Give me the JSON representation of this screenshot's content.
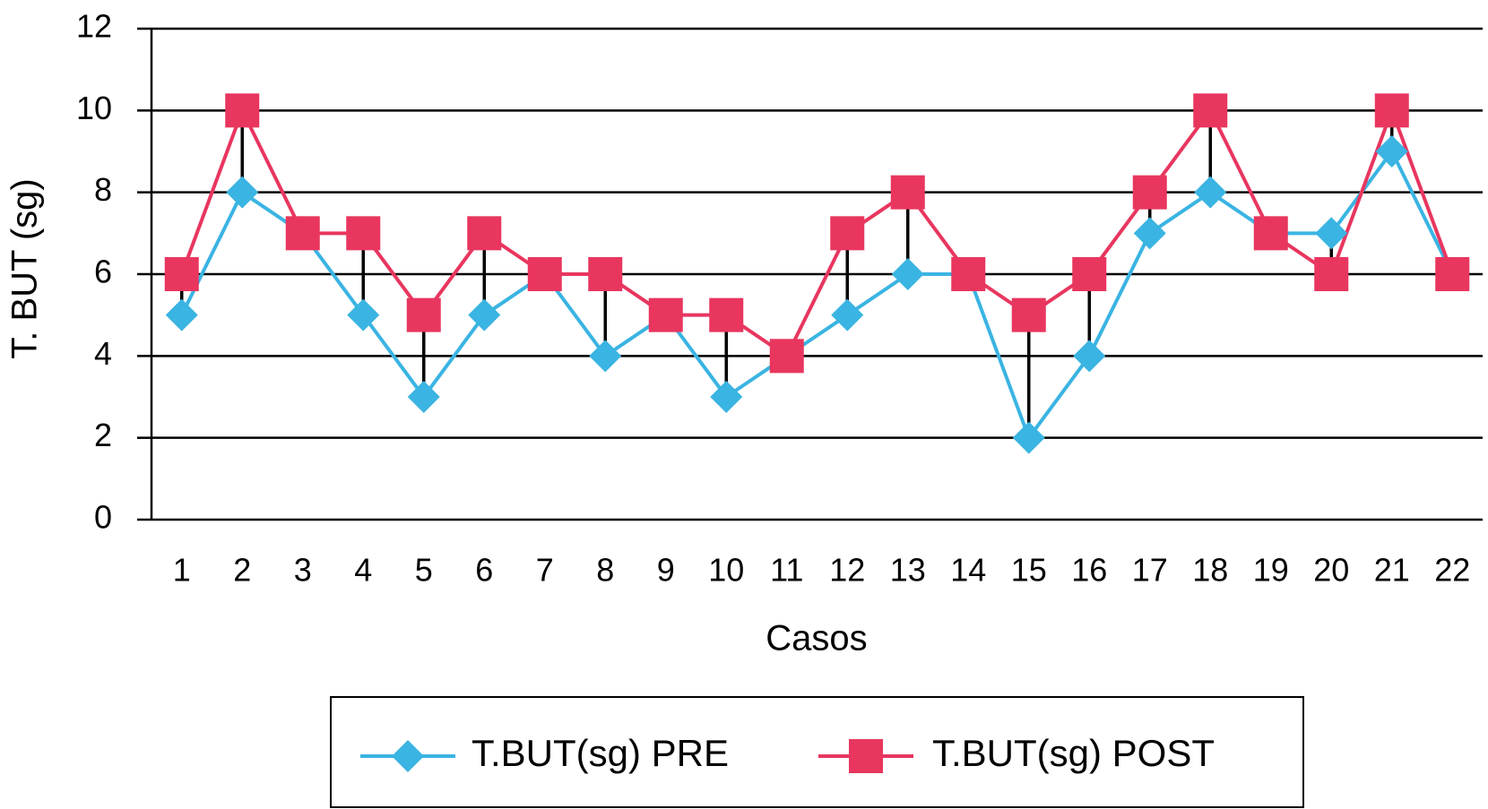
{
  "chart_data": {
    "type": "line",
    "y_label": "T. BUT (sg)",
    "x_label": "Casos",
    "categories": [
      "1",
      "2",
      "3",
      "4",
      "5",
      "6",
      "7",
      "8",
      "9",
      "10",
      "11",
      "12",
      "13",
      "14",
      "15",
      "16",
      "17",
      "18",
      "19",
      "20",
      "21",
      "22"
    ],
    "series": [
      {
        "name": "T.BUT(sg) PRE",
        "color": "#3ab4e2",
        "marker": "diamond",
        "values": [
          5,
          8,
          7,
          5,
          3,
          5,
          6,
          4,
          5,
          3,
          4,
          5,
          6,
          6,
          2,
          4,
          7,
          8,
          7,
          7,
          9,
          6
        ]
      },
      {
        "name": "T.BUT(sg) POST",
        "color": "#e8365f",
        "marker": "square",
        "values": [
          6,
          10,
          7,
          7,
          5,
          7,
          6,
          6,
          5,
          5,
          4,
          7,
          8,
          6,
          5,
          6,
          8,
          10,
          7,
          6,
          10,
          6
        ]
      }
    ],
    "ylim": [
      0,
      12
    ],
    "yticks": [
      0,
      2,
      4,
      6,
      8,
      10,
      12
    ],
    "grid": true,
    "high_low_lines": true,
    "legend": "bottom"
  }
}
